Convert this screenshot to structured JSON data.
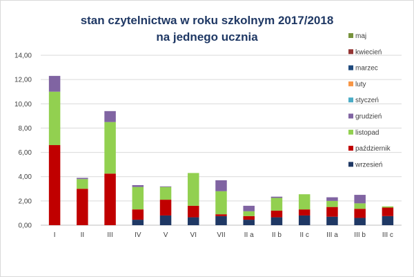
{
  "chart_data": {
    "type": "bar",
    "stacked": true,
    "title": "stan czytelnictwa w roku szkolnym 2017/2018",
    "subtitle": "na jednego ucznia",
    "xlabel": "",
    "ylabel": "",
    "ylim": [
      0,
      14
    ],
    "yticks": [
      "0,00",
      "2,00",
      "4,00",
      "6,00",
      "8,00",
      "10,00",
      "12,00",
      "14,00"
    ],
    "grid": true,
    "legend_position": "right",
    "categories": [
      "I",
      "II",
      "III",
      "IV",
      "V",
      "VI",
      "VII",
      "II a",
      "II b",
      "II c",
      "III a",
      "III b",
      "III c"
    ],
    "series": [
      {
        "name": "wrzesień",
        "color": "#1f3864",
        "values": [
          0,
          0,
          0,
          0.45,
          0.8,
          0.65,
          0.75,
          0.45,
          0.65,
          0.8,
          0.7,
          0.6,
          0.75
        ]
      },
      {
        "name": "październik",
        "color": "#c00000",
        "values": [
          6.6,
          3.0,
          4.25,
          0.85,
          1.3,
          0.95,
          0.15,
          0.3,
          0.55,
          0.5,
          0.8,
          0.75,
          0.7
        ]
      },
      {
        "name": "listopad",
        "color": "#92d050",
        "values": [
          4.4,
          0.8,
          4.25,
          1.85,
          1.05,
          2.7,
          1.9,
          0.4,
          1.05,
          1.25,
          0.5,
          0.45,
          0.1
        ]
      },
      {
        "name": "grudzień",
        "color": "#8064a2",
        "values": [
          1.3,
          0.1,
          0.9,
          0.15,
          0.05,
          0,
          0.9,
          0.45,
          0.1,
          0,
          0.3,
          0.7,
          0
        ]
      },
      {
        "name": "styczeń",
        "color": "#4bacc6",
        "values": [
          0,
          0,
          0,
          0,
          0,
          0,
          0,
          0,
          0,
          0,
          0,
          0,
          0
        ]
      },
      {
        "name": "luty",
        "color": "#f79646",
        "values": [
          0,
          0,
          0,
          0,
          0,
          0,
          0,
          0,
          0,
          0,
          0,
          0,
          0
        ]
      },
      {
        "name": "marzec",
        "color": "#1f497d",
        "values": [
          0,
          0,
          0,
          0,
          0,
          0,
          0,
          0,
          0,
          0,
          0,
          0,
          0
        ]
      },
      {
        "name": "kwiecień",
        "color": "#943634",
        "values": [
          0,
          0,
          0,
          0,
          0,
          0,
          0,
          0,
          0,
          0,
          0,
          0,
          0
        ]
      },
      {
        "name": "maj",
        "color": "#77933c",
        "values": [
          0,
          0,
          0,
          0,
          0,
          0,
          0,
          0,
          0,
          0,
          0,
          0,
          0
        ]
      }
    ],
    "legend_order": [
      "maj",
      "kwiecień",
      "marzec",
      "luty",
      "styczeń",
      "grudzień",
      "listopad",
      "październik",
      "wrzesień"
    ],
    "gridline_color": "#d9d9d9",
    "axis_color": "#bfbfbf"
  }
}
